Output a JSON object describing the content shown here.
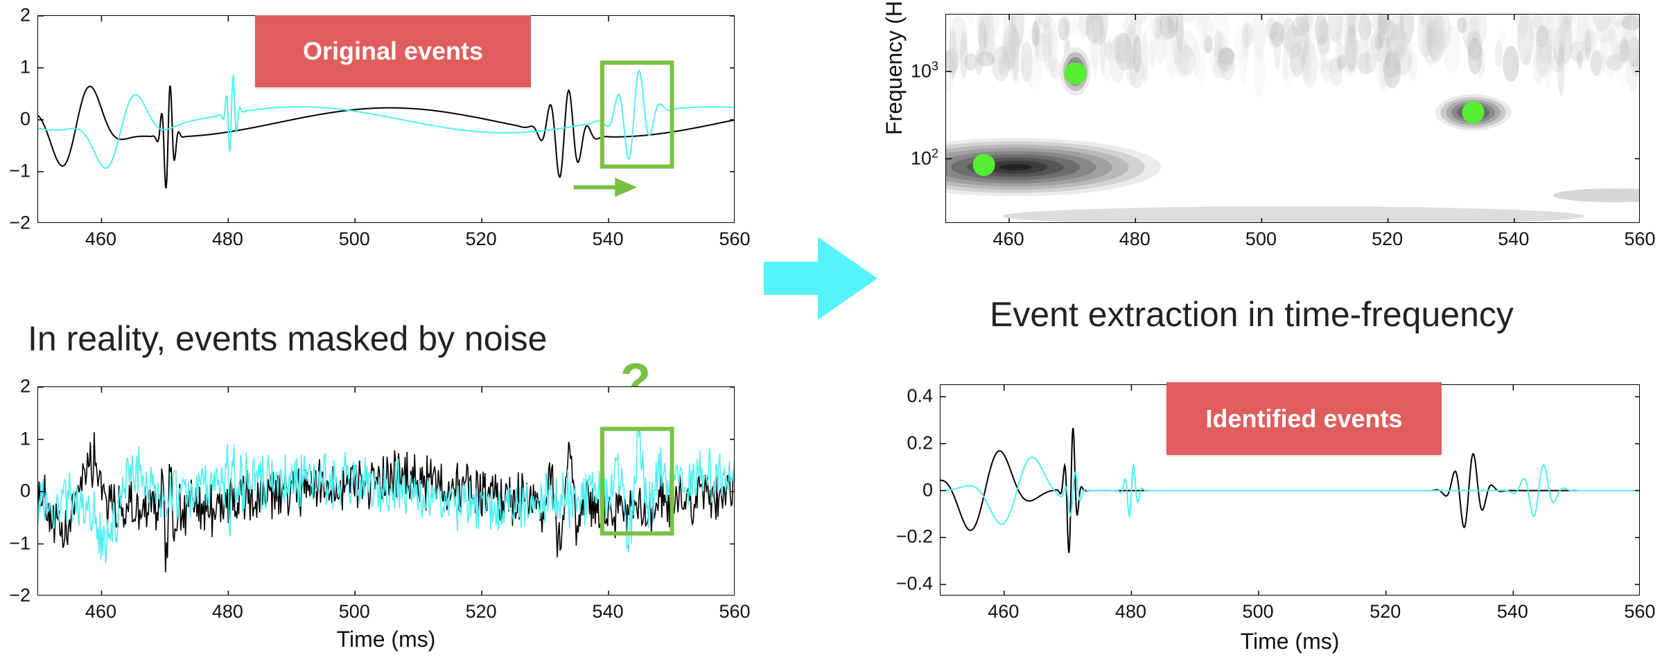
{
  "panels": {
    "original": {
      "badge": "Original events",
      "xticks": [
        "460",
        "480",
        "500",
        "520",
        "540",
        "560"
      ],
      "yticks": [
        "2",
        "1",
        "0",
        "−1",
        "−2"
      ],
      "xlim": [
        450,
        560
      ],
      "ylim": [
        -2,
        2
      ],
      "highlight_box": {
        "x": [
          539,
          550
        ],
        "y": [
          -0.9,
          1.1
        ]
      }
    },
    "noisy": {
      "caption": "In reality, events masked by noise",
      "question": "?",
      "xticks": [
        "460",
        "480",
        "500",
        "520",
        "540",
        "560"
      ],
      "yticks": [
        "2",
        "1",
        "0",
        "−1",
        "−2"
      ],
      "xlabel": "Time (ms)",
      "xlim": [
        450,
        560
      ],
      "ylim": [
        -2,
        2
      ],
      "highlight_box": {
        "x": [
          539,
          550
        ],
        "y": [
          -0.8,
          1.2
        ]
      }
    },
    "timefreq": {
      "caption": "Event extraction in time-frequency",
      "ylabel": "Frequency (Hz)",
      "yticks": [
        "10",
        "10"
      ],
      "ytick_exps": [
        "3",
        "2"
      ],
      "xticks": [
        "460",
        "480",
        "500",
        "520",
        "540",
        "560"
      ],
      "xlim": [
        450,
        560
      ],
      "points": [
        {
          "x": 456,
          "f": 85
        },
        {
          "x": 470.5,
          "f": 950
        },
        {
          "x": 533.5,
          "f": 340
        }
      ]
    },
    "identified": {
      "badge": "Identified events",
      "xticks": [
        "460",
        "480",
        "500",
        "520",
        "540",
        "560"
      ],
      "yticks": [
        "0.4",
        "0.2",
        "0",
        "−0.2",
        "−0.4"
      ],
      "xlabel": "Time (ms)",
      "xlim": [
        450,
        560
      ],
      "ylim": [
        -0.45,
        0.45
      ]
    }
  },
  "colors": {
    "series_black": "#000000",
    "series_cyan": "#4ff0f0",
    "highlight": "#7ac143",
    "arrow": "#55f3f7",
    "badge": "#e05d5d",
    "dot": "#55ee33"
  },
  "chart_data": [
    {
      "type": "line",
      "series": [
        {
          "name": "",
          "color": "#000000"
        },
        {
          "name": "",
          "color": "#4ff0f0"
        }
      ],
      "xlim": [
        450,
        560
      ],
      "ylim": [
        -2,
        2
      ],
      "annotations": [
        "Original events"
      ]
    },
    {
      "type": "line",
      "xlabel": "Time (ms)",
      "xlim": [
        450,
        560
      ],
      "ylim": [
        -2,
        2
      ],
      "annotations": [
        "?"
      ]
    },
    {
      "type": "heatmap",
      "ylabel": "Frequency (Hz)",
      "yscale": "log",
      "xlim": [
        450,
        560
      ],
      "points": [
        {
          "x": 456,
          "f": 85
        },
        {
          "x": 470.5,
          "f": 950
        },
        {
          "x": 533.5,
          "f": 340
        }
      ]
    },
    {
      "type": "line",
      "xlabel": "Time (ms)",
      "xlim": [
        450,
        560
      ],
      "ylim": [
        -0.45,
        0.45
      ],
      "annotations": [
        "Identified events"
      ]
    }
  ]
}
